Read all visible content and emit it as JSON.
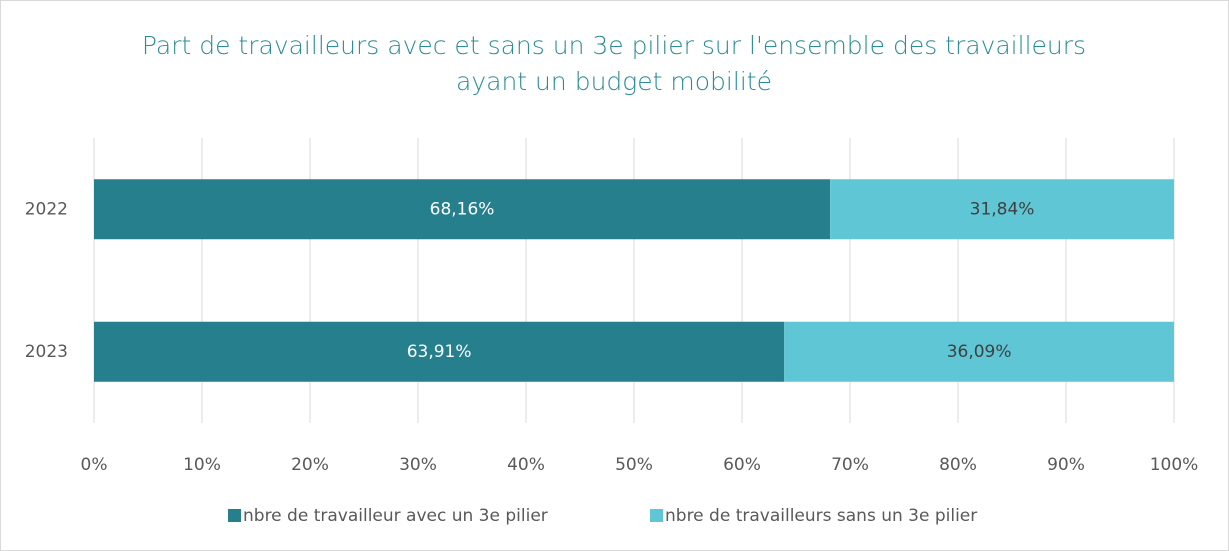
{
  "chart_data": {
    "type": "stacked_barh",
    "title": "Part de travailleurs avec et sans un 3e pilier sur l'ensemble des travailleurs ayant un budget mobilité",
    "categories": [
      "2022",
      "2023"
    ],
    "series": [
      {
        "name": "nbre de travailleur avec un 3e pilier",
        "color": "#267f8c",
        "values": [
          68.16,
          63.91
        ],
        "value_labels": [
          "68,16%",
          "63,91%"
        ]
      },
      {
        "name": "nbre de travailleurs sans un 3e pilier",
        "color": "#5fc6d5",
        "values": [
          31.84,
          36.09
        ],
        "value_labels": [
          "31,84%",
          "36,09%"
        ]
      }
    ],
    "xlim": [
      0,
      100
    ],
    "xticks": [
      {
        "value": 0,
        "label": "0%"
      },
      {
        "value": 10,
        "label": "10%"
      },
      {
        "value": 20,
        "label": "20%"
      },
      {
        "value": 30,
        "label": "30%"
      },
      {
        "value": 40,
        "label": "40%"
      },
      {
        "value": 50,
        "label": "50%"
      },
      {
        "value": 60,
        "label": "60%"
      },
      {
        "value": 70,
        "label": "70%"
      },
      {
        "value": 80,
        "label": "80%"
      },
      {
        "value": 90,
        "label": "90%"
      },
      {
        "value": 100,
        "label": "100%"
      }
    ],
    "grid": true,
    "legend": "bottom"
  }
}
